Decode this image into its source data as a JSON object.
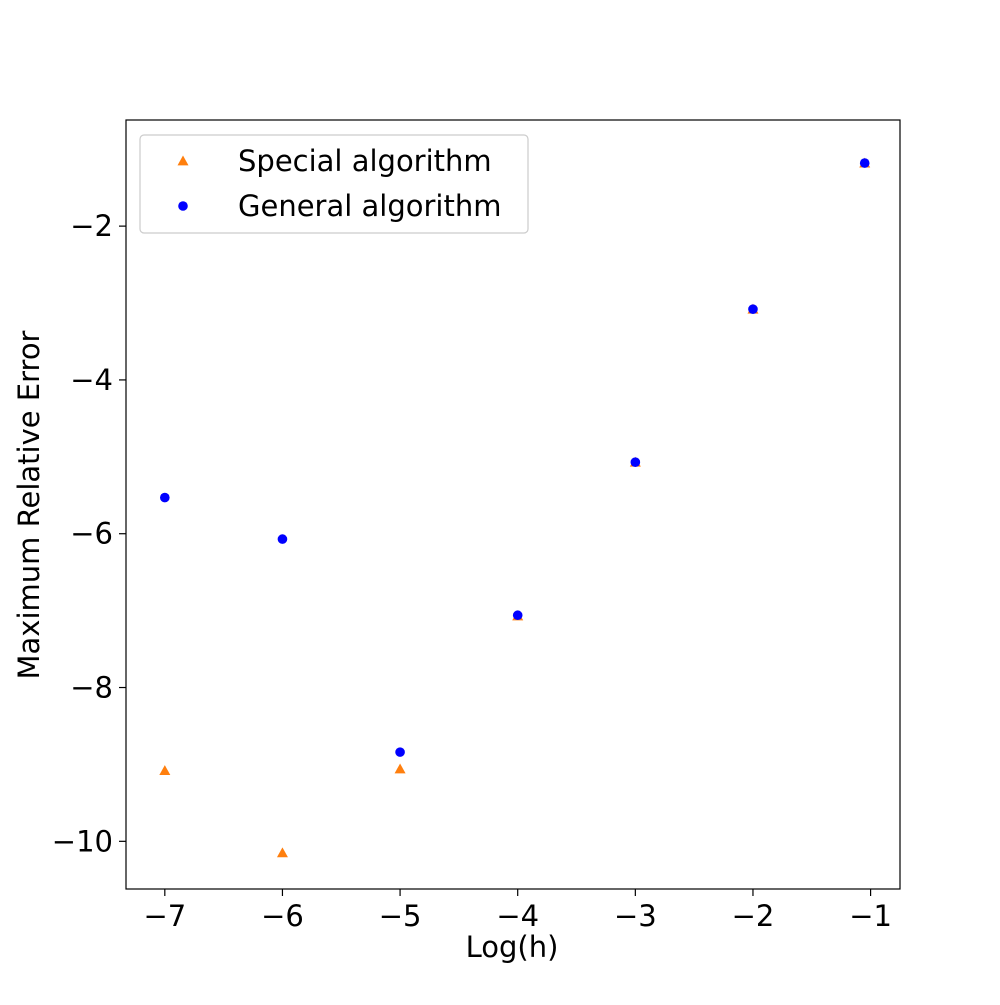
{
  "chart_data": {
    "type": "scatter",
    "title": "",
    "xlabel": "Log(h)",
    "ylabel": "Maximum Relative Error",
    "xlim": [
      -7.33,
      -0.75
    ],
    "ylim": [
      -10.62,
      -0.62
    ],
    "xticks": [
      -7,
      -6,
      -5,
      -4,
      -3,
      -2,
      -1
    ],
    "yticks": [
      -10,
      -8,
      -6,
      -4,
      -2
    ],
    "grid": false,
    "legend_position": "top-left",
    "series": [
      {
        "name": "Special algorithm",
        "marker": "triangle",
        "color": "#ff7f0e",
        "x": [
          -7,
          -6,
          -5,
          -4,
          -3,
          -2,
          -1.05
        ],
        "y": [
          -9.08,
          -10.15,
          -9.06,
          -7.07,
          -5.07,
          -3.08,
          -1.18
        ]
      },
      {
        "name": "General algorithm",
        "marker": "circle",
        "color": "#0000ff",
        "x": [
          -7,
          -6,
          -5,
          -4,
          -3,
          -2,
          -1.05
        ],
        "y": [
          -5.53,
          -6.07,
          -8.84,
          -7.06,
          -5.07,
          -3.08,
          -1.18
        ]
      }
    ]
  }
}
